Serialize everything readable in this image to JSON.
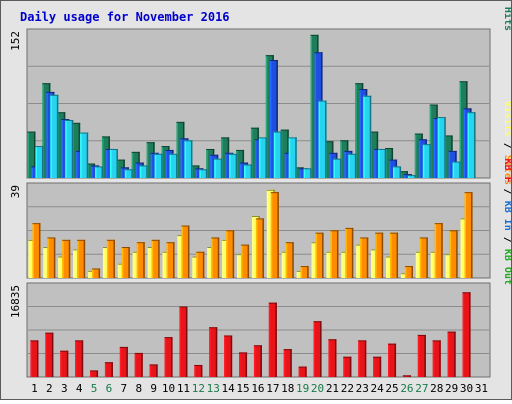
{
  "chart_data": {
    "type": "bar",
    "title": "Daily usage for November 2016",
    "categories": [
      "1",
      "2",
      "3",
      "4",
      "5",
      "6",
      "7",
      "8",
      "9",
      "10",
      "11",
      "12",
      "13",
      "14",
      "15",
      "16",
      "17",
      "18",
      "19",
      "20",
      "21",
      "22",
      "23",
      "24",
      "25",
      "26",
      "27",
      "28",
      "29",
      "30",
      "31"
    ],
    "weekend_days": [
      "5",
      "6",
      "12",
      "13",
      "19",
      "20",
      "26",
      "27"
    ],
    "colors": {
      "title": "#0000cc",
      "hits": "#1e7d5a",
      "files": "#1f4fe0",
      "pages": "#26d4f0",
      "visits": "#ffff66",
      "sites": "#ff8c00",
      "kbf": "#e8141a",
      "kb_in": "#1a6fd0",
      "kb_out": "#22aa22",
      "tick_weekday": "#000000",
      "tick_weekend": "#1a7a4a"
    },
    "panels": [
      {
        "id": "hits",
        "max_label": "152",
        "ylim": [
          0,
          152
        ],
        "legend": [
          {
            "label": "Pages",
            "color": "#26d4f0"
          },
          {
            "label": "Files",
            "color": "#1f4fe0"
          },
          {
            "label": "Hits",
            "color": "#1e7d5a"
          }
        ],
        "series": [
          {
            "name": "Hits",
            "color": "#1e7d5a",
            "values": [
              48,
              98,
              68,
              57,
              15,
              43,
              19,
              27,
              37,
              33,
              58,
              13,
              30,
              42,
              29,
              52,
              127,
              50,
              11,
              148,
              38,
              39,
              98,
              48,
              31,
              7,
              46,
              76,
              44,
              100
            ]
          },
          {
            "name": "Files",
            "color": "#1f4fe0",
            "values": [
              12,
              89,
              61,
              28,
              13,
              30,
              11,
              16,
              26,
              29,
              41,
              10,
              24,
              26,
              16,
              40,
              122,
              26,
              10,
              130,
              26,
              28,
              92,
              30,
              19,
              4,
              40,
              62,
              28,
              72
            ]
          },
          {
            "name": "Pages",
            "color": "#26d4f0",
            "values": [
              33,
              86,
              60,
              47,
              12,
              30,
              9,
              13,
              25,
              25,
              39,
              9,
              20,
              25,
              14,
              42,
              48,
              42,
              10,
              80,
              20,
              25,
              85,
              30,
              12,
              3,
              35,
              63,
              17,
              68
            ]
          }
        ]
      },
      {
        "id": "sites",
        "max_label": "39",
        "ylim": [
          0,
          39
        ],
        "legend": [
          {
            "label": "Visits",
            "color": "#ffff66"
          },
          {
            "label": "Sites",
            "color": "#ff8c00"
          }
        ],
        "series": [
          {
            "name": "Visits",
            "color": "#ffff66",
            "values": [
              16,
              13,
              9,
              12,
              3,
              13,
              6,
              11,
              13,
              11,
              18,
              9,
              13,
              16,
              10,
              26,
              37,
              11,
              3,
              15,
              11,
              11,
              14,
              12,
              9,
              2,
              11,
              11,
              10,
              25
            ]
          },
          {
            "name": "Sites",
            "color": "#ff8c00",
            "values": [
              23,
              17,
              16,
              16,
              4,
              16,
              13,
              15,
              16,
              15,
              22,
              11,
              17,
              20,
              14,
              25,
              36,
              15,
              5,
              19,
              20,
              21,
              17,
              19,
              19,
              5,
              17,
              23,
              20,
              36
            ]
          }
        ]
      },
      {
        "id": "kbytes",
        "max_label": "16835",
        "ylim": [
          0,
          16835
        ],
        "legend": [
          {
            "label": "KB F",
            "color": "#e8141a"
          },
          {
            "label": "KB In",
            "color": "#1a6fd0"
          },
          {
            "label": "KB Out",
            "color": "#22aa22"
          }
        ],
        "series": [
          {
            "name": "KB F",
            "color": "#e8141a",
            "values": [
              6700,
              8100,
              4800,
              6700,
              1200,
              2700,
              5500,
              4400,
              2300,
              7300,
              12900,
              2200,
              9100,
              7600,
              4500,
              5800,
              13600,
              5100,
              1900,
              10200,
              6900,
              3700,
              6700,
              3700,
              6100,
              300,
              7700,
              6700,
              8300,
              15500
            ]
          }
        ]
      }
    ]
  }
}
